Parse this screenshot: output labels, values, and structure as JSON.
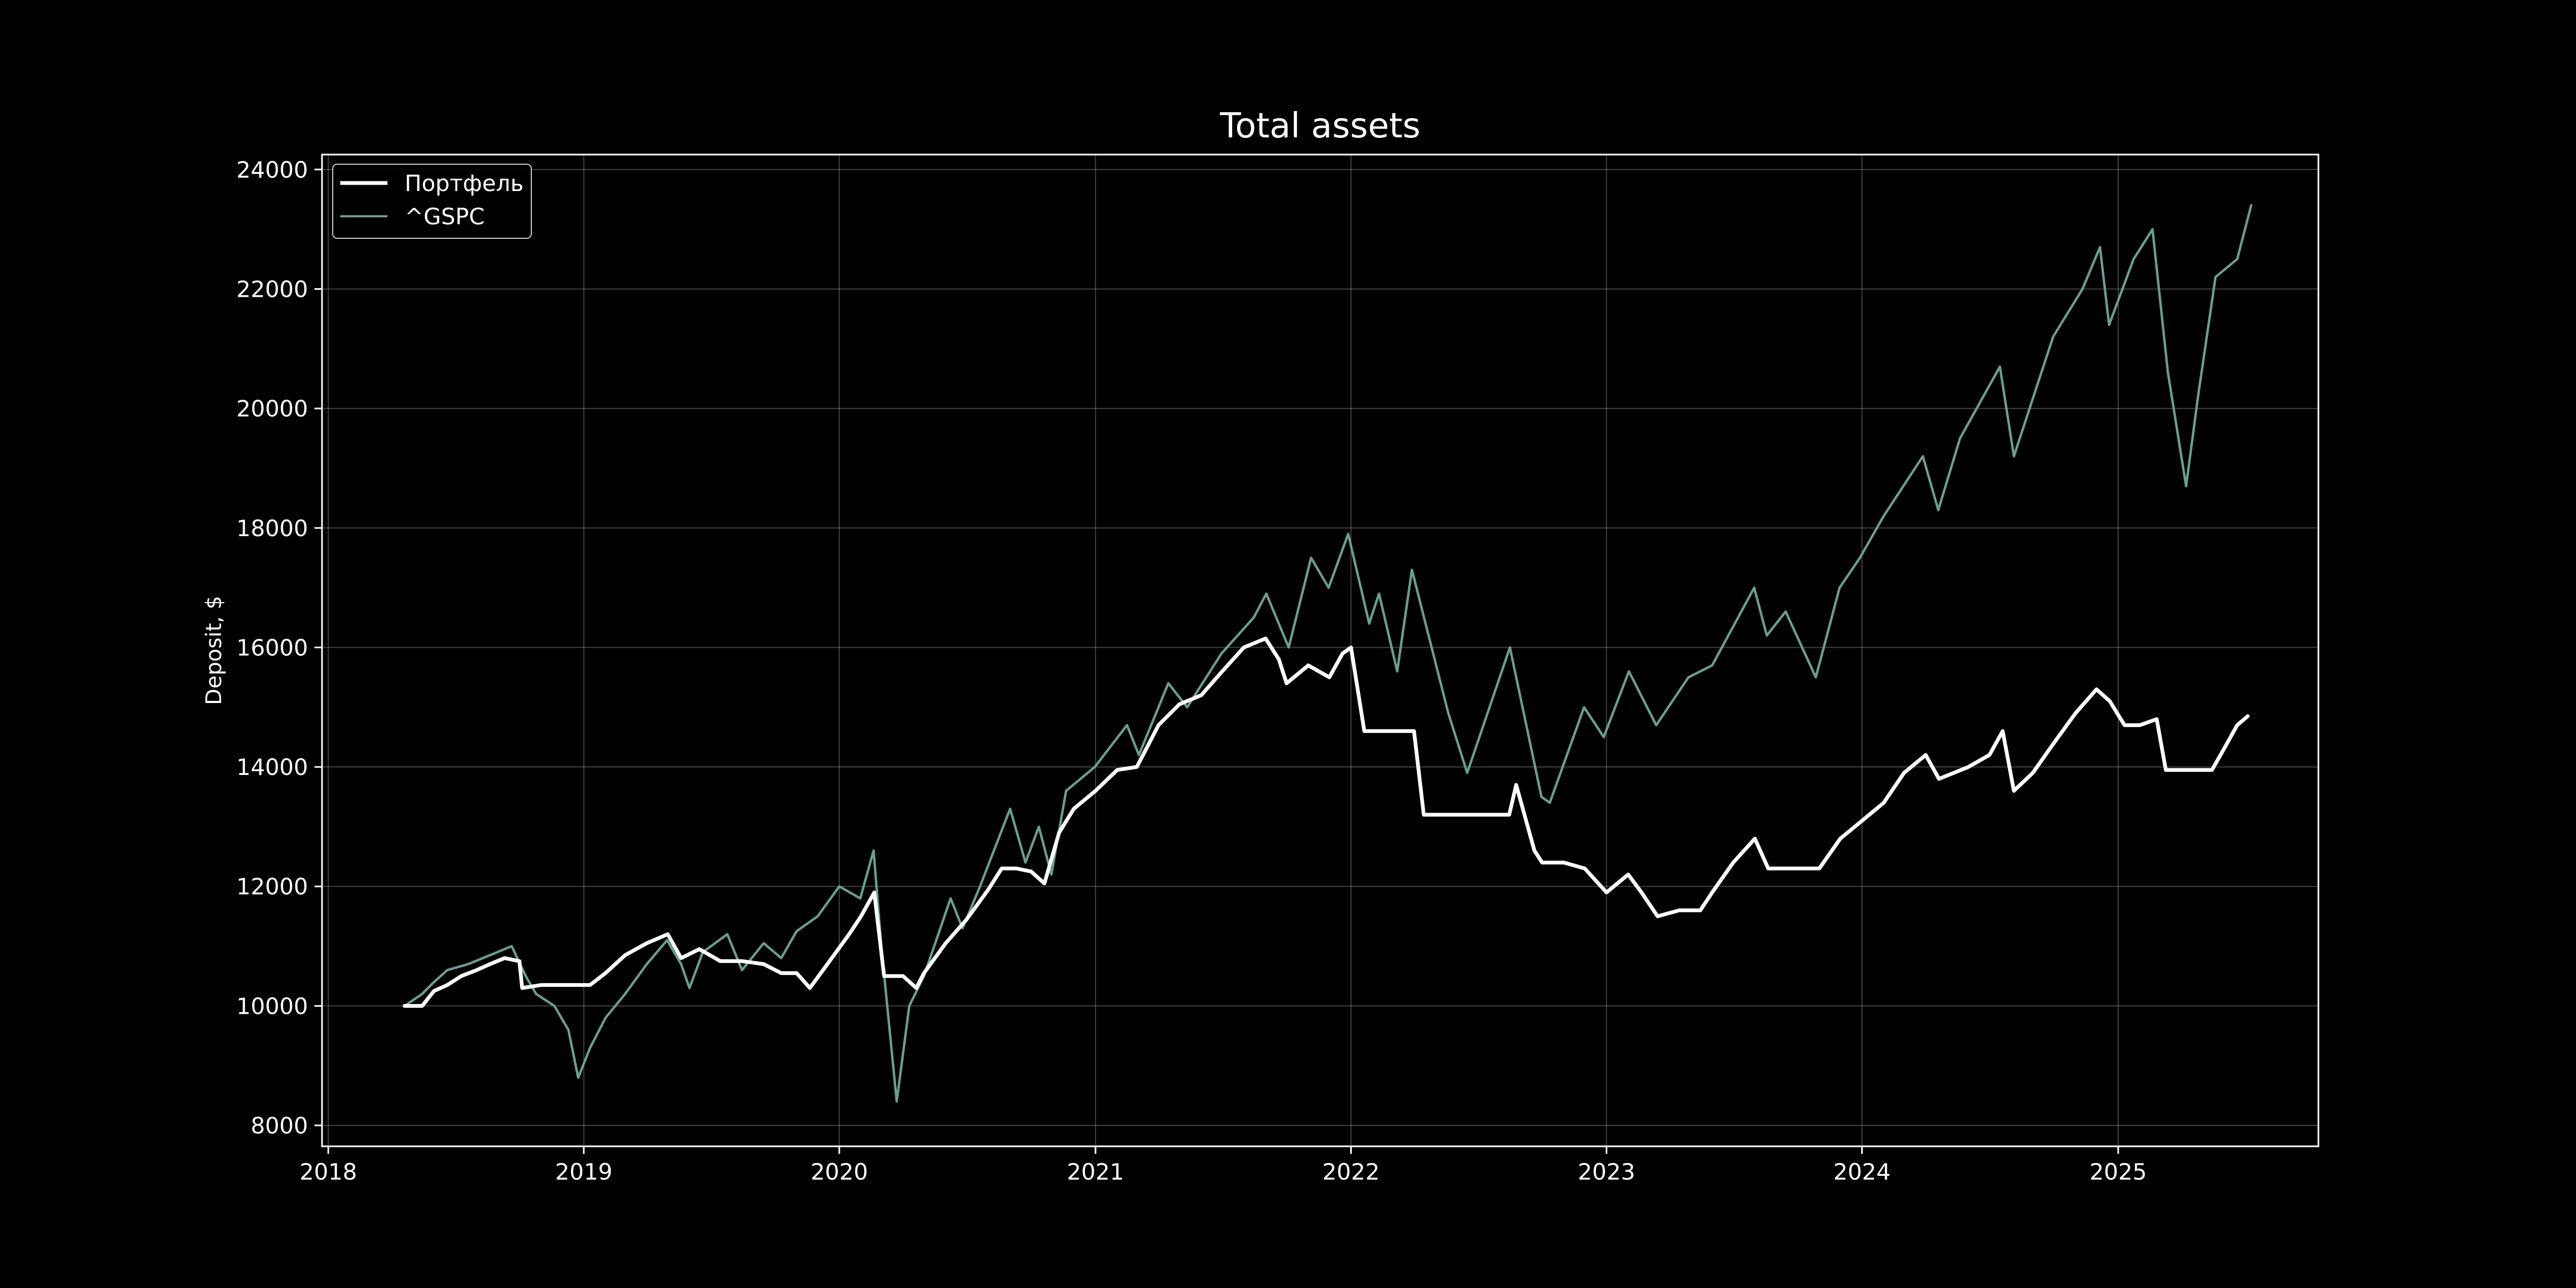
{
  "chart_data": {
    "type": "line",
    "title": "Total assets",
    "xlabel": "",
    "ylabel": "Deposit, $",
    "xlim": [
      "2017-12-23",
      "2025-10-14"
    ],
    "ylim": [
      7650,
      24250
    ],
    "x_ticks": [
      "2018",
      "2019",
      "2020",
      "2021",
      "2022",
      "2023",
      "2024",
      "2025"
    ],
    "y_ticks": [
      8000,
      10000,
      12000,
      14000,
      16000,
      18000,
      20000,
      22000,
      24000
    ],
    "grid": true,
    "legend_position": "top-left",
    "background": "#000000",
    "series": [
      {
        "name": "Портфель",
        "color": "#ffffff",
        "points": [
          [
            "2018-04-20",
            10000
          ],
          [
            "2018-05-15",
            10000
          ],
          [
            "2018-06-01",
            10250
          ],
          [
            "2018-06-20",
            10350
          ],
          [
            "2018-07-10",
            10500
          ],
          [
            "2018-08-01",
            10600
          ],
          [
            "2018-08-20",
            10700
          ],
          [
            "2018-09-10",
            10800
          ],
          [
            "2018-10-01",
            10750
          ],
          [
            "2018-10-05",
            10300
          ],
          [
            "2018-11-01",
            10350
          ],
          [
            "2018-12-01",
            10350
          ],
          [
            "2019-01-10",
            10350
          ],
          [
            "2019-02-01",
            10550
          ],
          [
            "2019-03-01",
            10850
          ],
          [
            "2019-04-01",
            11050
          ],
          [
            "2019-05-01",
            11200
          ],
          [
            "2019-05-20",
            10800
          ],
          [
            "2019-06-15",
            10950
          ],
          [
            "2019-07-15",
            10750
          ],
          [
            "2019-08-15",
            10750
          ],
          [
            "2019-09-15",
            10700
          ],
          [
            "2019-10-10",
            10550
          ],
          [
            "2019-11-01",
            10550
          ],
          [
            "2019-11-20",
            10300
          ],
          [
            "2019-12-15",
            10700
          ],
          [
            "2020-01-15",
            11200
          ],
          [
            "2020-02-01",
            11500
          ],
          [
            "2020-02-20",
            11900
          ],
          [
            "2020-03-05",
            10500
          ],
          [
            "2020-04-01",
            10500
          ],
          [
            "2020-04-20",
            10300
          ],
          [
            "2020-05-01",
            10550
          ],
          [
            "2020-06-01",
            11050
          ],
          [
            "2020-07-01",
            11450
          ],
          [
            "2020-08-01",
            11950
          ],
          [
            "2020-08-20",
            12300
          ],
          [
            "2020-09-10",
            12300
          ],
          [
            "2020-10-01",
            12250
          ],
          [
            "2020-10-20",
            12050
          ],
          [
            "2020-11-10",
            12900
          ],
          [
            "2020-12-01",
            13300
          ],
          [
            "2021-01-01",
            13600
          ],
          [
            "2021-02-01",
            13950
          ],
          [
            "2021-03-01",
            14000
          ],
          [
            "2021-04-01",
            14700
          ],
          [
            "2021-05-01",
            15050
          ],
          [
            "2021-06-01",
            15200
          ],
          [
            "2021-07-01",
            15600
          ],
          [
            "2021-08-01",
            16000
          ],
          [
            "2021-09-01",
            16150
          ],
          [
            "2021-09-20",
            15800
          ],
          [
            "2021-10-01",
            15400
          ],
          [
            "2021-11-01",
            15700
          ],
          [
            "2021-12-01",
            15500
          ],
          [
            "2021-12-20",
            15900
          ],
          [
            "2022-01-01",
            16000
          ],
          [
            "2022-01-20",
            14600
          ],
          [
            "2022-03-01",
            14600
          ],
          [
            "2022-04-01",
            14600
          ],
          [
            "2022-04-15",
            13200
          ],
          [
            "2022-06-01",
            13200
          ],
          [
            "2022-08-15",
            13200
          ],
          [
            "2022-08-25",
            13700
          ],
          [
            "2022-09-20",
            12600
          ],
          [
            "2022-10-01",
            12400
          ],
          [
            "2022-11-01",
            12400
          ],
          [
            "2022-12-01",
            12300
          ],
          [
            "2023-01-01",
            11900
          ],
          [
            "2023-02-01",
            12200
          ],
          [
            "2023-02-20",
            11900
          ],
          [
            "2023-03-15",
            11500
          ],
          [
            "2023-04-15",
            11600
          ],
          [
            "2023-05-15",
            11600
          ],
          [
            "2023-06-01",
            11900
          ],
          [
            "2023-07-01",
            12400
          ],
          [
            "2023-08-01",
            12800
          ],
          [
            "2023-08-20",
            12300
          ],
          [
            "2023-10-01",
            12300
          ],
          [
            "2023-11-01",
            12300
          ],
          [
            "2023-12-01",
            12800
          ],
          [
            "2024-01-01",
            13100
          ],
          [
            "2024-02-01",
            13400
          ],
          [
            "2024-03-01",
            13900
          ],
          [
            "2024-04-01",
            14200
          ],
          [
            "2024-04-20",
            13800
          ],
          [
            "2024-06-01",
            14000
          ],
          [
            "2024-07-01",
            14200
          ],
          [
            "2024-07-20",
            14600
          ],
          [
            "2024-08-05",
            13600
          ],
          [
            "2024-09-01",
            13900
          ],
          [
            "2024-10-01",
            14400
          ],
          [
            "2024-11-01",
            14900
          ],
          [
            "2024-12-01",
            15300
          ],
          [
            "2024-12-20",
            15100
          ],
          [
            "2025-01-10",
            14700
          ],
          [
            "2025-02-01",
            14700
          ],
          [
            "2025-02-25",
            14800
          ],
          [
            "2025-03-10",
            13950
          ],
          [
            "2025-04-01",
            13950
          ],
          [
            "2025-05-15",
            13950
          ],
          [
            "2025-06-01",
            14300
          ],
          [
            "2025-06-20",
            14700
          ],
          [
            "2025-07-05",
            14850
          ]
        ]
      },
      {
        "name": "^GSPC",
        "color": "#6b9e94",
        "points": [
          [
            "2018-04-20",
            10000
          ],
          [
            "2018-05-15",
            10200
          ],
          [
            "2018-06-01",
            10400
          ],
          [
            "2018-06-20",
            10600
          ],
          [
            "2018-07-20",
            10700
          ],
          [
            "2018-08-20",
            10850
          ],
          [
            "2018-09-20",
            11000
          ],
          [
            "2018-10-10",
            10500
          ],
          [
            "2018-10-25",
            10200
          ],
          [
            "2018-11-20",
            10000
          ],
          [
            "2018-12-10",
            9600
          ],
          [
            "2018-12-24",
            8800
          ],
          [
            "2019-01-10",
            9300
          ],
          [
            "2019-02-01",
            9800
          ],
          [
            "2019-03-01",
            10200
          ],
          [
            "2019-04-01",
            10700
          ],
          [
            "2019-04-30",
            11100
          ],
          [
            "2019-05-20",
            10700
          ],
          [
            "2019-06-01",
            10300
          ],
          [
            "2019-06-20",
            10900
          ],
          [
            "2019-07-25",
            11200
          ],
          [
            "2019-08-15",
            10600
          ],
          [
            "2019-09-15",
            11050
          ],
          [
            "2019-10-10",
            10800
          ],
          [
            "2019-11-01",
            11250
          ],
          [
            "2019-12-01",
            11500
          ],
          [
            "2020-01-01",
            12000
          ],
          [
            "2020-01-31",
            11800
          ],
          [
            "2020-02-19",
            12600
          ],
          [
            "2020-03-01",
            11000
          ],
          [
            "2020-03-23",
            8400
          ],
          [
            "2020-04-10",
            10000
          ],
          [
            "2020-05-01",
            10500
          ],
          [
            "2020-06-08",
            11800
          ],
          [
            "2020-06-25",
            11300
          ],
          [
            "2020-07-20",
            12000
          ],
          [
            "2020-09-01",
            13300
          ],
          [
            "2020-09-23",
            12400
          ],
          [
            "2020-10-12",
            13000
          ],
          [
            "2020-10-30",
            12200
          ],
          [
            "2020-11-20",
            13600
          ],
          [
            "2020-12-31",
            14000
          ],
          [
            "2021-02-15",
            14700
          ],
          [
            "2021-03-04",
            14200
          ],
          [
            "2021-04-15",
            15400
          ],
          [
            "2021-05-12",
            15000
          ],
          [
            "2021-06-30",
            15900
          ],
          [
            "2021-08-15",
            16500
          ],
          [
            "2021-09-02",
            16900
          ],
          [
            "2021-10-04",
            16000
          ],
          [
            "2021-11-05",
            17500
          ],
          [
            "2021-11-30",
            17000
          ],
          [
            "2021-12-28",
            17900
          ],
          [
            "2022-01-27",
            16400
          ],
          [
            "2022-02-10",
            16900
          ],
          [
            "2022-03-08",
            15600
          ],
          [
            "2022-03-29",
            17300
          ],
          [
            "2022-05-20",
            14900
          ],
          [
            "2022-06-16",
            13900
          ],
          [
            "2022-08-16",
            16000
          ],
          [
            "2022-09-30",
            13500
          ],
          [
            "2022-10-12",
            13400
          ],
          [
            "2022-11-30",
            15000
          ],
          [
            "2022-12-28",
            14500
          ],
          [
            "2023-02-02",
            15600
          ],
          [
            "2023-03-13",
            14700
          ],
          [
            "2023-04-28",
            15500
          ],
          [
            "2023-06-01",
            15700
          ],
          [
            "2023-07-31",
            17000
          ],
          [
            "2023-08-18",
            16200
          ],
          [
            "2023-09-14",
            16600
          ],
          [
            "2023-10-27",
            15500
          ],
          [
            "2023-11-30",
            17000
          ],
          [
            "2023-12-29",
            17500
          ],
          [
            "2024-02-01",
            18200
          ],
          [
            "2024-03-28",
            19200
          ],
          [
            "2024-04-19",
            18300
          ],
          [
            "2024-05-20",
            19500
          ],
          [
            "2024-07-16",
            20700
          ],
          [
            "2024-08-05",
            19200
          ],
          [
            "2024-09-30",
            21200
          ],
          [
            "2024-11-11",
            22000
          ],
          [
            "2024-12-06",
            22700
          ],
          [
            "2024-12-19",
            21400
          ],
          [
            "2025-01-23",
            22500
          ],
          [
            "2025-02-19",
            23000
          ],
          [
            "2025-03-13",
            20600
          ],
          [
            "2025-04-08",
            18700
          ],
          [
            "2025-04-25",
            20200
          ],
          [
            "2025-05-20",
            22200
          ],
          [
            "2025-06-20",
            22500
          ],
          [
            "2025-07-10",
            23400
          ]
        ]
      }
    ]
  }
}
